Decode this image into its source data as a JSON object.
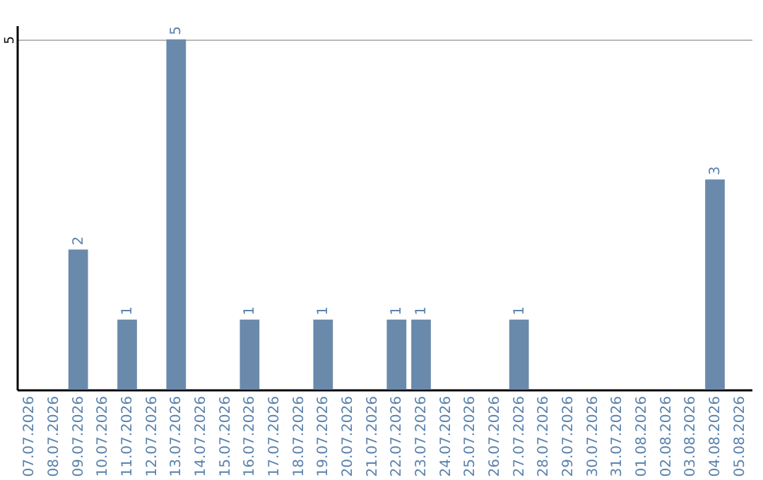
{
  "chart_data": {
    "type": "bar",
    "categories": [
      "07.07.2026",
      "08.07.2026",
      "09.07.2026",
      "10.07.2026",
      "11.07.2026",
      "12.07.2026",
      "13.07.2026",
      "14.07.2026",
      "15.07.2026",
      "16.07.2026",
      "17.07.2026",
      "18.07.2026",
      "19.07.2026",
      "20.07.2026",
      "21.07.2026",
      "22.07.2026",
      "23.07.2026",
      "24.07.2026",
      "25.07.2026",
      "26.07.2026",
      "27.07.2026",
      "28.07.2026",
      "29.07.2026",
      "30.07.2026",
      "31.07.2026",
      "01.08.2026",
      "02.08.2026",
      "03.08.2026",
      "04.08.2026",
      "05.08.2026"
    ],
    "values": [
      null,
      null,
      2,
      null,
      1,
      null,
      5,
      null,
      null,
      1,
      null,
      null,
      1,
      null,
      null,
      1,
      1,
      null,
      null,
      null,
      1,
      null,
      null,
      null,
      null,
      null,
      null,
      null,
      3,
      null
    ],
    "color": "#6a8aac",
    "ylim": [
      0,
      5.2
    ],
    "yticks": [
      5
    ],
    "grid": "y",
    "data_labels": true
  }
}
